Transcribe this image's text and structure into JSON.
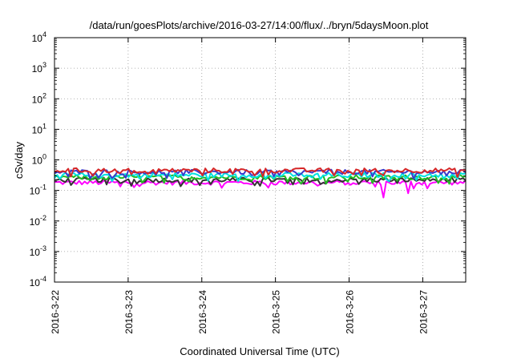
{
  "chart_data": {
    "type": "line",
    "title": "/data/run/goesPlots/archive/2016-03-27/14:00/flux/../bryn/5daysMoon.plot",
    "xlabel": "Coordinated Universal Time (UTC)",
    "ylabel": "cSv/day",
    "yscale": "log",
    "ylim": [
      0.0001,
      10000
    ],
    "yticks": [
      {
        "base": "10",
        "exp": "4"
      },
      {
        "base": "10",
        "exp": "3"
      },
      {
        "base": "10",
        "exp": "2"
      },
      {
        "base": "10",
        "exp": "1"
      },
      {
        "base": "10",
        "exp": "0"
      },
      {
        "base": "10",
        "exp": "-1"
      },
      {
        "base": "10",
        "exp": "-2"
      },
      {
        "base": "10",
        "exp": "-3"
      },
      {
        "base": "10",
        "exp": "-4"
      }
    ],
    "xlim": [
      "2016-03-22T00:00",
      "2016-03-27T14:00"
    ],
    "xticks": [
      "2016-3-22",
      "2016-3-23",
      "2016-3-24",
      "2016-3-25",
      "2016-3-26",
      "2016-3-27"
    ],
    "grid": true,
    "series": [
      {
        "color": "#d62728",
        "approx_value": 0.45
      },
      {
        "color": "#3a3acc",
        "approx_value": 0.4
      },
      {
        "color": "#00e0e0",
        "approx_value": 0.32
      },
      {
        "color": "#22bb22",
        "approx_value": 0.27
      },
      {
        "color": "#333333",
        "approx_value": 0.22
      },
      {
        "color": "#ff00ff",
        "approx_value": 0.18
      }
    ]
  }
}
